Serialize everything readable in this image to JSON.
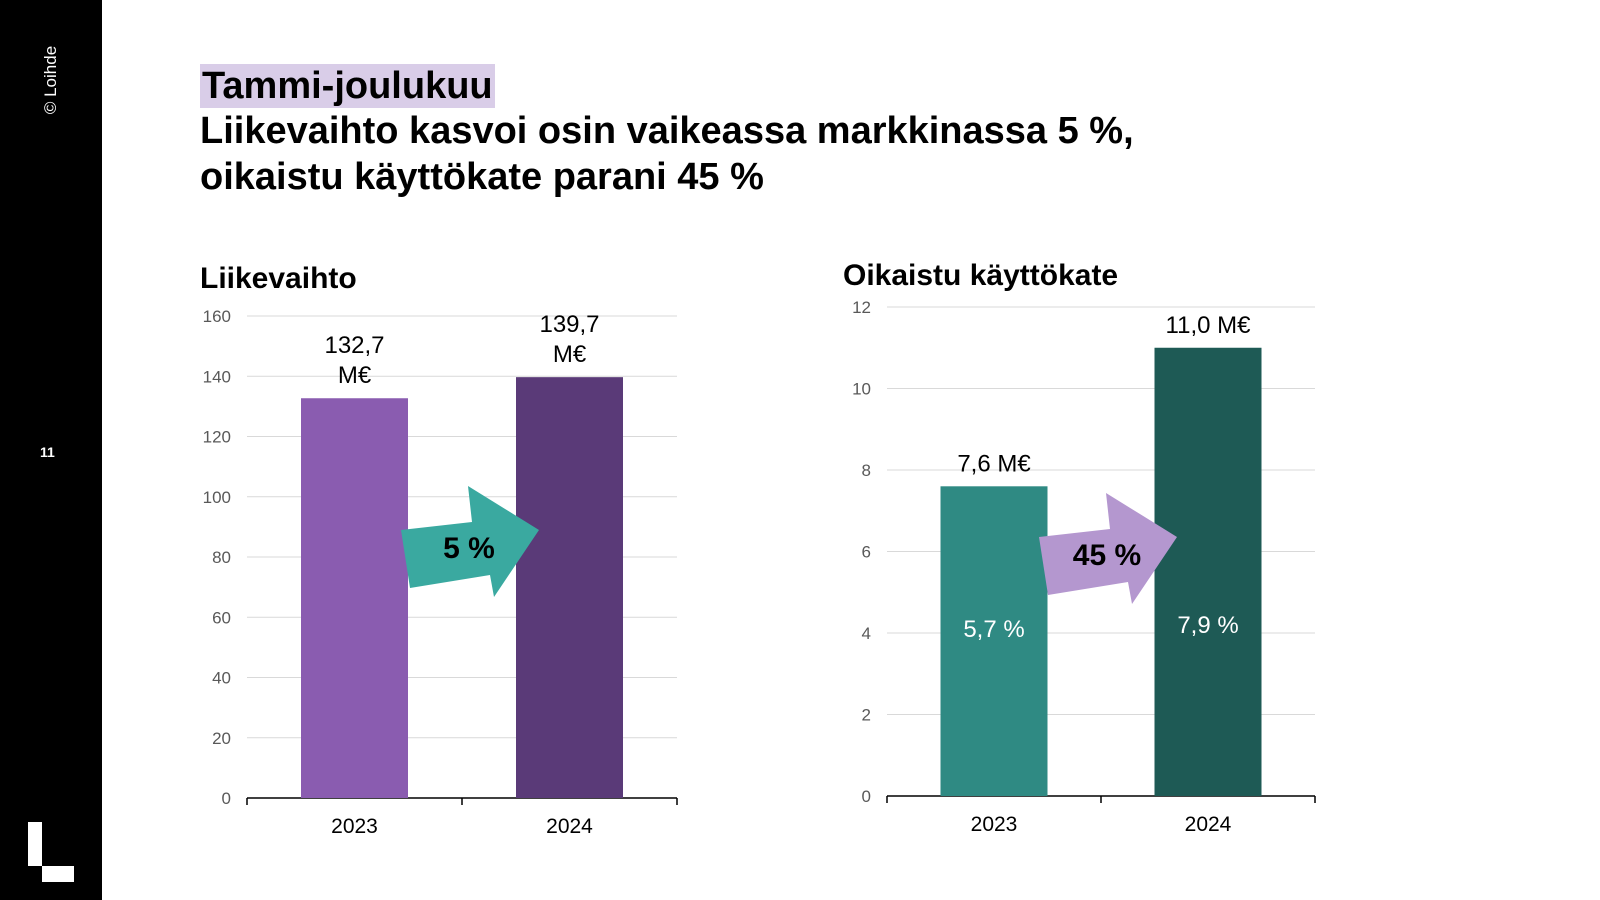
{
  "sidebar": {
    "copyright": "© Loihde",
    "page_number": "11"
  },
  "header": {
    "tag": "Tammi-joulukuu",
    "headline_line1": "Liikevaihto kasvoi osin vaikeassa markkinassa 5 %,",
    "headline_line2": "oikaistu käyttökate parani 45 %"
  },
  "colors": {
    "sidebar": "#000000",
    "tag_highlight": "#d9cde8",
    "bar_2023_revenue": "#8a5cb0",
    "bar_2024_revenue": "#5a3a78",
    "arrow_revenue": "#3aa9a0",
    "bar_2023_ebitda": "#2f8a83",
    "bar_2024_ebitda": "#1e5a55",
    "arrow_ebitda": "#b497cf"
  },
  "chart_data": [
    {
      "type": "bar",
      "title": "Liikevaihto",
      "categories": [
        "2023",
        "2024"
      ],
      "values": [
        132.7,
        139.7
      ],
      "data_labels": [
        [
          "132,7",
          "M€"
        ],
        [
          "139,7",
          "M€"
        ]
      ],
      "ylim": [
        0,
        160
      ],
      "yticks": [
        0,
        20,
        40,
        60,
        80,
        100,
        120,
        140,
        160
      ],
      "grid": true,
      "growth_arrow_label": "5 %"
    },
    {
      "type": "bar",
      "title": "Oikaistu käyttökate",
      "categories": [
        "2023",
        "2024"
      ],
      "values": [
        7.6,
        11.0
      ],
      "data_labels": [
        [
          "7,6 M€"
        ],
        [
          "11,0 M€"
        ]
      ],
      "inner_labels": [
        "5,7 %",
        "7,9 %"
      ],
      "ylim": [
        0,
        12
      ],
      "yticks": [
        0,
        2,
        4,
        6,
        8,
        10,
        12
      ],
      "grid": true,
      "growth_arrow_label": "45 %"
    }
  ]
}
